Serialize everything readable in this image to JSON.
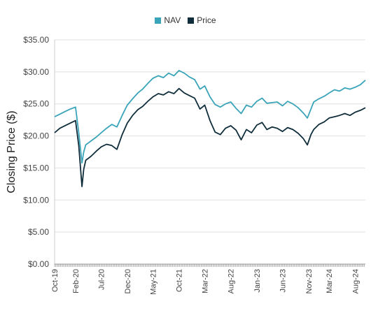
{
  "chart_data": {
    "type": "line",
    "title": "",
    "xlabel": "",
    "ylabel": "Closing Price ($)",
    "ylim": [
      0,
      35
    ],
    "yticks": [
      "$0.00",
      "$5.00",
      "$10.00",
      "$15.00",
      "$20.00",
      "$25.00",
      "$30.00",
      "$35.00"
    ],
    "ytick_values": [
      0,
      5,
      10,
      15,
      20,
      25,
      30,
      35
    ],
    "xlim": [
      "2019-10-01",
      "2024-09-30"
    ],
    "xticks": [
      {
        "label": "Oct-19",
        "date": "2019-10-01"
      },
      {
        "label": "Feb-20",
        "date": "2020-02-01"
      },
      {
        "label": "Jul-20",
        "date": "2020-07-01"
      },
      {
        "label": "Dec-20",
        "date": "2020-12-01"
      },
      {
        "label": "May-21",
        "date": "2021-05-01"
      },
      {
        "label": "Oct-21",
        "date": "2021-10-01"
      },
      {
        "label": "Mar-22",
        "date": "2022-03-01"
      },
      {
        "label": "Aug-22",
        "date": "2022-08-01"
      },
      {
        "label": "Jan-23",
        "date": "2023-01-01"
      },
      {
        "label": "Jun-23",
        "date": "2023-06-01"
      },
      {
        "label": "Nov-23",
        "date": "2023-11-01"
      },
      {
        "label": "Mar-24",
        "date": "2024-03-01"
      },
      {
        "label": "Aug-24",
        "date": "2024-08-01"
      }
    ],
    "grid": true,
    "legend_position": "top-center",
    "series": [
      {
        "name": "NAV",
        "color": "#3aa4b8",
        "x": [
          "2019-10-01",
          "2019-11-01",
          "2019-12-01",
          "2020-01-01",
          "2020-02-01",
          "2020-02-20",
          "2020-03-10",
          "2020-03-20",
          "2020-04-01",
          "2020-05-01",
          "2020-06-01",
          "2020-07-01",
          "2020-08-01",
          "2020-09-01",
          "2020-10-01",
          "2020-11-01",
          "2020-12-01",
          "2021-01-01",
          "2021-02-01",
          "2021-03-01",
          "2021-04-01",
          "2021-05-01",
          "2021-06-01",
          "2021-07-01",
          "2021-08-01",
          "2021-09-01",
          "2021-10-01",
          "2021-11-01",
          "2021-12-01",
          "2022-01-01",
          "2022-02-01",
          "2022-03-01",
          "2022-04-01",
          "2022-05-01",
          "2022-06-01",
          "2022-07-01",
          "2022-08-01",
          "2022-09-01",
          "2022-10-01",
          "2022-11-01",
          "2022-12-01",
          "2023-01-01",
          "2023-02-01",
          "2023-03-01",
          "2023-04-01",
          "2023-05-01",
          "2023-06-01",
          "2023-07-01",
          "2023-08-01",
          "2023-09-01",
          "2023-10-01",
          "2023-10-25",
          "2023-11-15",
          "2023-12-01",
          "2024-01-01",
          "2024-02-01",
          "2024-03-01",
          "2024-04-01",
          "2024-05-01",
          "2024-06-01",
          "2024-07-01",
          "2024-08-01",
          "2024-09-01",
          "2024-09-30"
        ],
        "values": [
          23.0,
          23.4,
          23.8,
          24.2,
          24.5,
          20.5,
          15.8,
          17.5,
          18.6,
          19.2,
          19.8,
          20.5,
          21.2,
          21.8,
          21.4,
          23.2,
          24.8,
          25.8,
          26.7,
          27.3,
          28.2,
          29.0,
          29.4,
          29.1,
          29.8,
          29.4,
          30.2,
          29.8,
          29.2,
          28.8,
          27.3,
          27.8,
          26.1,
          24.9,
          24.5,
          25.0,
          25.3,
          24.3,
          23.5,
          24.8,
          24.5,
          25.4,
          25.9,
          25.1,
          25.2,
          25.3,
          24.7,
          25.4,
          25.0,
          24.4,
          23.6,
          22.8,
          24.2,
          25.3,
          25.8,
          26.2,
          26.7,
          27.2,
          27.0,
          27.5,
          27.3,
          27.6,
          28.0,
          28.7
        ]
      },
      {
        "name": "Price",
        "color": "#0f2d3a",
        "x": [
          "2019-10-01",
          "2019-11-01",
          "2019-12-01",
          "2020-01-01",
          "2020-02-01",
          "2020-02-20",
          "2020-03-10",
          "2020-03-20",
          "2020-04-01",
          "2020-05-01",
          "2020-06-01",
          "2020-07-01",
          "2020-08-01",
          "2020-09-01",
          "2020-10-01",
          "2020-11-01",
          "2020-12-01",
          "2021-01-01",
          "2021-02-01",
          "2021-03-01",
          "2021-04-01",
          "2021-05-01",
          "2021-06-01",
          "2021-07-01",
          "2021-08-01",
          "2021-09-01",
          "2021-10-01",
          "2021-11-01",
          "2021-12-01",
          "2022-01-01",
          "2022-02-01",
          "2022-03-01",
          "2022-04-01",
          "2022-05-01",
          "2022-06-01",
          "2022-07-01",
          "2022-08-01",
          "2022-09-01",
          "2022-10-01",
          "2022-11-01",
          "2022-12-01",
          "2023-01-01",
          "2023-02-01",
          "2023-03-01",
          "2023-04-01",
          "2023-05-01",
          "2023-06-01",
          "2023-07-01",
          "2023-08-01",
          "2023-09-01",
          "2023-10-01",
          "2023-10-25",
          "2023-11-15",
          "2023-12-01",
          "2024-01-01",
          "2024-02-01",
          "2024-03-01",
          "2024-04-01",
          "2024-05-01",
          "2024-06-01",
          "2024-07-01",
          "2024-08-01",
          "2024-09-01",
          "2024-09-30"
        ],
        "values": [
          20.5,
          21.2,
          21.6,
          22.0,
          22.4,
          18.5,
          12.1,
          14.8,
          16.2,
          16.8,
          17.6,
          18.3,
          18.7,
          18.5,
          17.9,
          20.2,
          22.0,
          23.2,
          24.1,
          24.6,
          25.4,
          26.1,
          26.6,
          26.4,
          26.9,
          26.6,
          27.4,
          26.7,
          26.3,
          25.9,
          24.2,
          24.8,
          22.4,
          20.6,
          20.2,
          21.2,
          21.6,
          20.9,
          19.4,
          21.0,
          20.5,
          21.7,
          22.1,
          21.0,
          21.4,
          21.2,
          20.7,
          21.3,
          21.0,
          20.4,
          19.6,
          18.6,
          20.2,
          21.0,
          21.8,
          22.2,
          22.8,
          23.0,
          23.2,
          23.5,
          23.2,
          23.7,
          24.0,
          24.4
        ]
      }
    ]
  },
  "legend": [
    {
      "label": "NAV",
      "color": "#3aa4b8"
    },
    {
      "label": "Price",
      "color": "#0f2d3a"
    }
  ]
}
